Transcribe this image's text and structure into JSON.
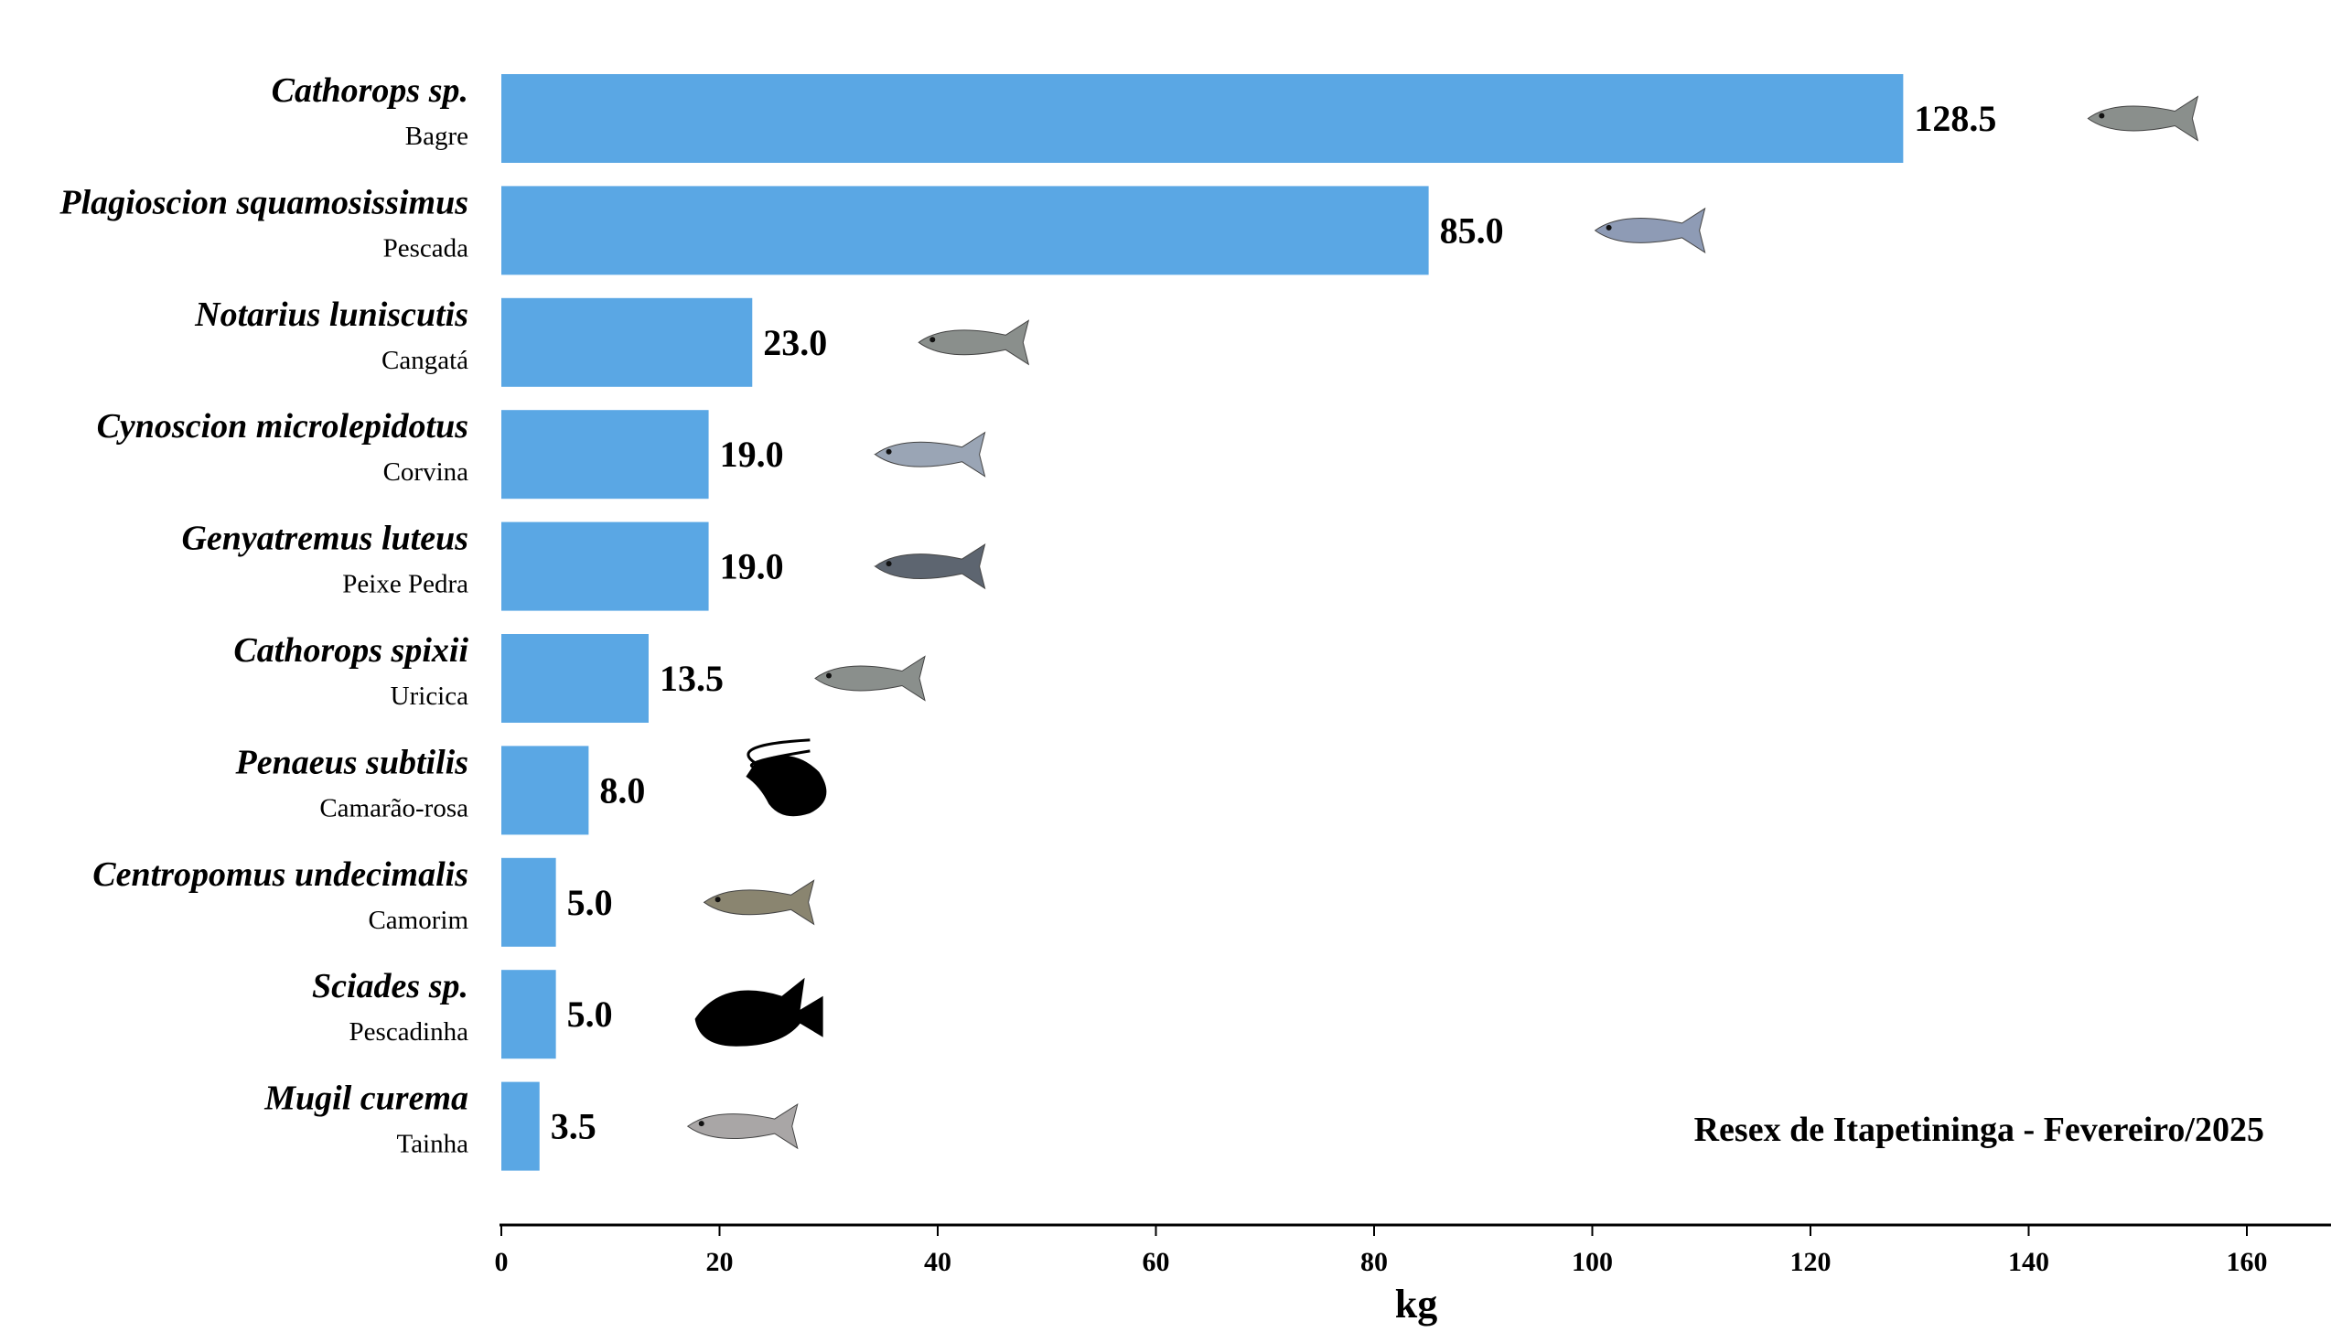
{
  "chart_data": {
    "type": "bar",
    "orientation": "horizontal",
    "categories": [
      {
        "species": "Cathorops sp.",
        "common": "Bagre",
        "icon": "catfish-icon"
      },
      {
        "species": "Plagioscion squamosissimus",
        "common": "Pescada",
        "icon": "croaker-icon"
      },
      {
        "species": "Notarius luniscutis",
        "common": "Cangatá",
        "icon": "catfish-icon"
      },
      {
        "species": "Cynoscion microlepidotus",
        "common": "Corvina",
        "icon": "weakfish-icon"
      },
      {
        "species": "Genyatremus luteus",
        "common": "Peixe Pedra",
        "icon": "grunt-fish-icon"
      },
      {
        "species": "Cathorops spixii",
        "common": "Uricica",
        "icon": "catfish-icon"
      },
      {
        "species": "Penaeus subtilis",
        "common": "Camarão-rosa",
        "icon": "shrimp-silhouette-icon"
      },
      {
        "species": "Centropomus undecimalis",
        "common": "Camorim",
        "icon": "snook-icon"
      },
      {
        "species": "Sciades sp.",
        "common": "Pescadinha",
        "icon": "fish-silhouette-icon"
      },
      {
        "species": "Mugil curema",
        "common": "Tainha",
        "icon": "mullet-icon"
      }
    ],
    "values": [
      128.5,
      85.0,
      23.0,
      19.0,
      19.0,
      13.5,
      8.0,
      5.0,
      5.0,
      3.5
    ],
    "value_labels": [
      "128.5",
      "85.0",
      "23.0",
      "19.0",
      "19.0",
      "13.5",
      "8.0",
      "5.0",
      "5.0",
      "3.5"
    ],
    "xlabel": "kg",
    "xlim": [
      0,
      160
    ],
    "xticks": [
      "0",
      "20",
      "40",
      "60",
      "80",
      "100",
      "120",
      "140",
      "160"
    ],
    "annotation": "Resex de Itapetininga - Fevereiro/2025",
    "grid": false,
    "bar_color": "#5aa7e4"
  }
}
